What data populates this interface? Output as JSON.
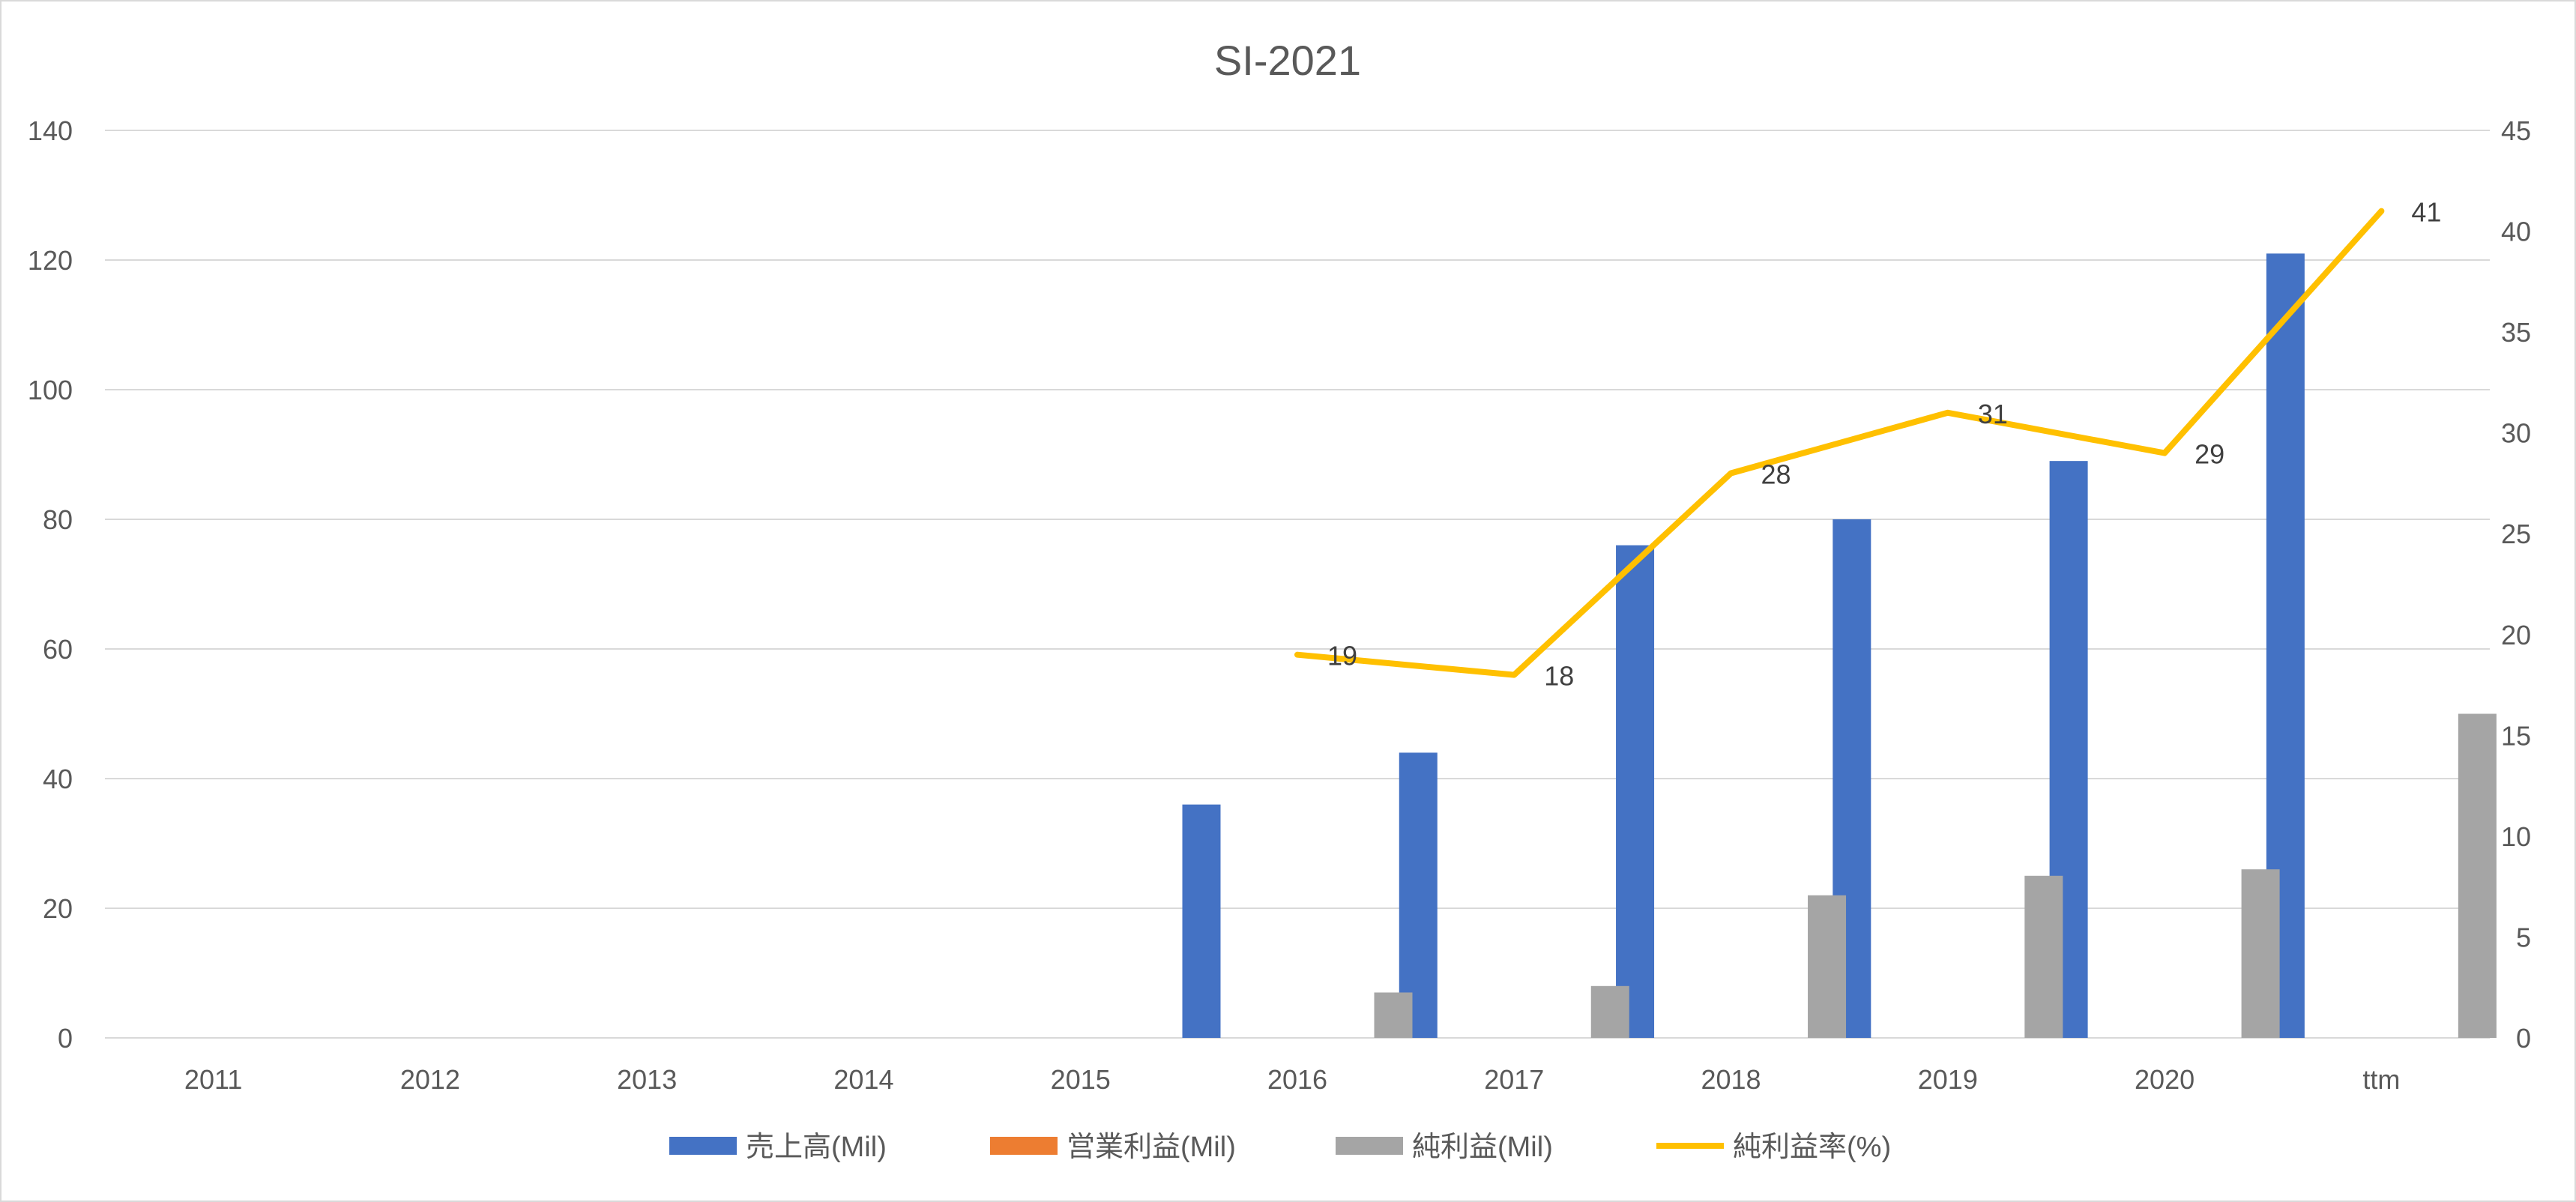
{
  "chart_data": {
    "type": "bar",
    "title": "SI-2021",
    "categories": [
      "2011",
      "2012",
      "2013",
      "2014",
      "2015",
      "2016",
      "2017",
      "2018",
      "2019",
      "2020",
      "ttm"
    ],
    "y_left": {
      "min": 0,
      "max": 140,
      "ticks": [
        "0",
        "20",
        "40",
        "60",
        "80",
        "100",
        "120",
        "140"
      ]
    },
    "y_right": {
      "min": 0,
      "max": 45,
      "ticks": [
        "0",
        "5",
        "10",
        "15",
        "20",
        "25",
        "30",
        "35",
        "40",
        "45"
      ]
    },
    "series": [
      {
        "name": "売上高(Mil)",
        "type": "bar",
        "axis": "left",
        "color": "#4472C4",
        "values": [
          null,
          null,
          null,
          null,
          null,
          36,
          44,
          76,
          80,
          89,
          121
        ]
      },
      {
        "name": "営業利益(Mil)",
        "type": "bar",
        "axis": "left",
        "color": "#ED7D31",
        "values": [
          null,
          null,
          null,
          null,
          null,
          null,
          null,
          null,
          null,
          null,
          null
        ]
      },
      {
        "name": "純利益(Mil)",
        "type": "bar",
        "axis": "left",
        "color": "#A5A5A5",
        "values": [
          null,
          null,
          null,
          null,
          null,
          7,
          8,
          22,
          25,
          26,
          50
        ]
      },
      {
        "name": "純利益率(%)",
        "type": "line",
        "axis": "right",
        "color": "#FFC000",
        "values": [
          null,
          null,
          null,
          null,
          null,
          19,
          18,
          28,
          31,
          29,
          41
        ],
        "labels": [
          null,
          null,
          null,
          null,
          null,
          "19",
          "18",
          "28",
          "31",
          "29",
          "41"
        ]
      }
    ],
    "grid": true,
    "legend_position": "bottom"
  }
}
